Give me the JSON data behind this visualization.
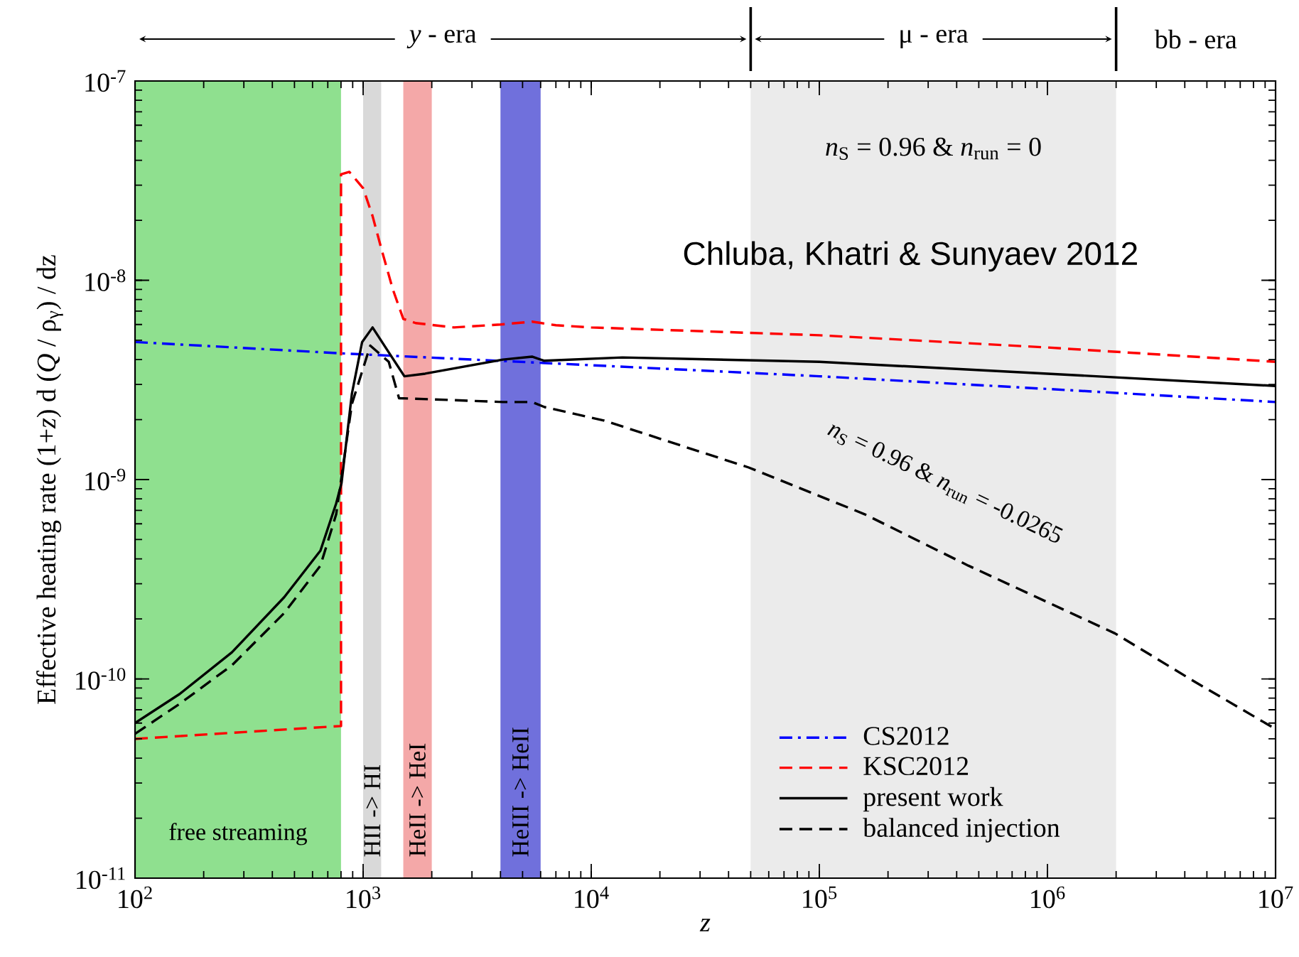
{
  "chart_data": {
    "type": "line",
    "xlabel": "*z*",
    "ylabel": "Effective heating rate  (1+*z*) d (*Q* / ρ$_{γ}$) / dz",
    "log": "xy",
    "xlim": [
      100,
      10000000
    ],
    "ylim": [
      1e-11,
      1e-07
    ],
    "xticks": [
      {
        "value": 100,
        "label": "10$^{2}$"
      },
      {
        "value": 1000,
        "label": "10$^{3}$"
      },
      {
        "value": 10000,
        "label": "10$^{4}$"
      },
      {
        "value": 100000,
        "label": "10$^{5}$"
      },
      {
        "value": 1000000,
        "label": "10$^{6}$"
      },
      {
        "value": 10000000,
        "label": "10$^{7}$"
      }
    ],
    "yticks": [
      {
        "value": 1e-11,
        "label": "10$^{-11}$"
      },
      {
        "value": 1e-10,
        "label": "10$^{-10}$"
      },
      {
        "value": 1e-09,
        "label": "10$^{-9}$"
      },
      {
        "value": 1e-08,
        "label": "10$^{-8}$"
      },
      {
        "value": 1e-07,
        "label": "10$^{-7}$"
      }
    ],
    "grid": false,
    "legend": "bottom right",
    "series": [
      {
        "name": "CS2012",
        "color": "#0000ff",
        "line_style": "dashdot",
        "x": [
          100,
          800,
          10000,
          100000,
          1000000,
          10000000
        ],
        "values": [
          4.9e-09,
          4.3e-09,
          3.75e-09,
          3.3e-09,
          2.85e-09,
          2.45e-09
        ]
      },
      {
        "name": "KSC2012",
        "color": "#ff0000",
        "line_style": "dashed",
        "x": [
          100,
          800,
          800,
          870,
          1000,
          1100,
          1200,
          1350,
          1500,
          1700,
          2500,
          4000,
          5500,
          7000,
          10000,
          100000,
          1000000,
          10000000
        ],
        "values": [
          5e-11,
          5.8e-11,
          3.4e-08,
          3.5e-08,
          2.9e-08,
          2.1e-08,
          1.45e-08,
          9e-09,
          6.4e-09,
          6.1e-09,
          5.8e-09,
          6e-09,
          6.2e-09,
          5.95e-09,
          5.8e-09,
          5.3e-09,
          4.6e-09,
          3.9e-09
        ]
      },
      {
        "name": "present work",
        "color": "#000000",
        "line_style": "solid",
        "x": [
          100,
          157,
          266,
          451,
          650,
          762,
          804,
          893,
          990,
          1100,
          1295,
          1517,
          1870,
          4100,
          5500,
          6200,
          13700,
          100000,
          1000000,
          10000000
        ],
        "values": [
          6e-11,
          8.4e-11,
          1.36e-10,
          2.57e-10,
          4.4e-10,
          7.6e-10,
          9.6e-10,
          2.7e-09,
          4.9e-09,
          5.8e-09,
          4.35e-09,
          3.3e-09,
          3.4e-09,
          4e-09,
          4.14e-09,
          3.95e-09,
          4.1e-09,
          3.9e-09,
          3.4e-09,
          2.95e-09
        ]
      },
      {
        "name": "balanced injection",
        "color": "#000000",
        "line_style": "dashed",
        "x": [
          100,
          157,
          266,
          451,
          650,
          762,
          893,
          1075,
          1295,
          1437,
          1630,
          4100,
          5500,
          6250,
          11350,
          49000,
          158000,
          450000,
          1980000,
          4340000,
          10000000
        ],
        "values": [
          5.3e-11,
          7.5e-11,
          1.17e-10,
          2.14e-10,
          3.7e-10,
          6.7e-10,
          2.4e-09,
          4.7e-09,
          3.9e-09,
          2.56e-09,
          2.55e-09,
          2.45e-09,
          2.45e-09,
          2.31e-09,
          1.98e-09,
          1.15e-09,
          6.7e-10,
          3.7e-10,
          1.69e-10,
          9.8e-11,
          5.6e-11
        ]
      }
    ],
    "bands": [
      {
        "axis": "x",
        "from": 100,
        "to": 800,
        "label": "free streaming",
        "color": "#8fe08f"
      },
      {
        "axis": "x",
        "from": 1000,
        "to": 1200,
        "label": "HII -> HI",
        "color": "#d9d9d9"
      },
      {
        "axis": "x",
        "from": 1500,
        "to": 2000,
        "label": "HeII -> HeI",
        "color": "#f4a8a8"
      },
      {
        "axis": "x",
        "from": 4000,
        "to": 6000,
        "label": "HeIII -> HeII",
        "color": "#7070dc"
      },
      {
        "axis": "x",
        "from": 50000,
        "to": 2000000,
        "color": "#ebebeb"
      }
    ],
    "annotations": [
      "*y* - era",
      "μ - era",
      "bb - era",
      "*n*$_{S}$ = 0.96 & *n*$_{run}$ = 0",
      "Chluba, Khatri & Sunyaev 2012",
      "*n*$_{S}$ = 0.96 & *n*$_{run}$ = -0.0265"
    ]
  }
}
